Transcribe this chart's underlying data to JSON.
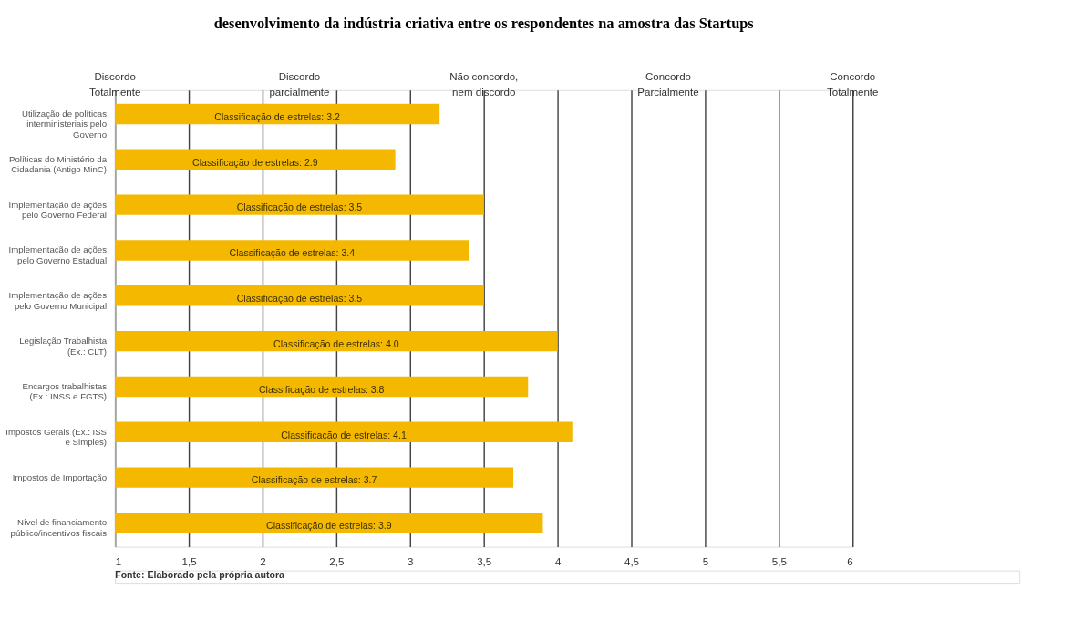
{
  "chart_data": {
    "type": "bar",
    "orientation": "horizontal",
    "title": "desenvolvimento da indústria criativa entre os respondentes na amostra das Startups",
    "categories": [
      "Utilização de políticas interministeriais pelo Governo",
      "Políticas do Ministério da Cidadania (Antigo MinC)",
      "Implementação de ações pelo Governo Federal",
      "Implementação de ações pelo Governo Estadual",
      "Implementação de ações pelo Governo Municipal",
      "Legislação Trabalhista (Ex.: CLT)",
      "Encargos trabalhistas (Ex.: INSS e FGTS)",
      "Impostos Gerais (Ex.: ISS e Simples)",
      "Impostos de Importação",
      "Nível de financiamento público/incentivos fiscais"
    ],
    "values": [
      3.2,
      2.9,
      3.5,
      3.4,
      3.5,
      4.0,
      3.8,
      4.1,
      3.7,
      3.9
    ],
    "value_labels": [
      "Classificação de estrelas: 3.2",
      "Classificação de estrelas: 2.9",
      "Classificação de estrelas: 3.5",
      "Classificação de estrelas: 3.4",
      "Classificação de estrelas: 3.5",
      "Classificação de estrelas: 4.0",
      "Classificação de estrelas: 3.8",
      "Classificação de estrelas: 4.1",
      "Classificação de estrelas: 3.7",
      "Classificação de estrelas: 3.9"
    ],
    "color": "#f5b800",
    "xlim": [
      1,
      6
    ],
    "xticks": [
      1,
      {
        "value": 1.5,
        "label": "1,5"
      },
      2,
      {
        "value": 2.5,
        "label": "2,5"
      },
      3,
      {
        "value": 3.5,
        "label": "3,5"
      },
      4,
      {
        "value": 4.5,
        "label": "4,5"
      },
      5,
      {
        "value": 5.5,
        "label": "5,5"
      },
      6
    ],
    "grid": "x",
    "annotations": [
      "Discordo Totalmente",
      "Discordo parcialmente",
      "Não concordo, nem discordo",
      "Concordo Parcialmente",
      "Concordo Totalmente",
      "Fonte: Elaborado pela própria autora"
    ]
  }
}
